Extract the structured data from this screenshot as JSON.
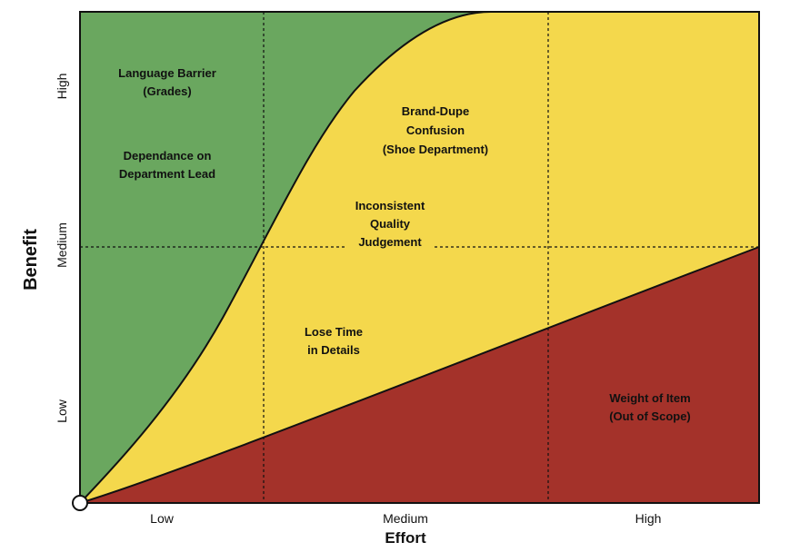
{
  "colors": {
    "green": "#6aa75f",
    "yellow": "#f4d84c",
    "red": "#a4322a",
    "frame": "#111111",
    "origin_fill": "#ffffff"
  },
  "axes": {
    "x_title": "Effort",
    "y_title": "Benefit",
    "x_ticks": [
      "Low",
      "Medium",
      "High"
    ],
    "y_ticks": [
      "Low",
      "Medium",
      "High"
    ]
  },
  "regions": [
    {
      "id": "language-barrier",
      "lines": [
        "Language Barrier",
        "(Grades)"
      ]
    },
    {
      "id": "dependance-department-lead",
      "lines": [
        "Dependance on",
        "Department Lead"
      ]
    },
    {
      "id": "brand-dupe-confusion",
      "lines": [
        "Brand-Dupe",
        "Confusion",
        "(Shoe Department)"
      ]
    },
    {
      "id": "inconsistent-quality",
      "lines": [
        "Inconsistent",
        "Quality",
        "Judgement"
      ]
    },
    {
      "id": "lose-time-details",
      "lines": [
        "Lose Time",
        "in Details"
      ]
    },
    {
      "id": "weight-of-item",
      "lines": [
        "Weight of Item",
        "(Out of Scope)"
      ]
    }
  ]
}
